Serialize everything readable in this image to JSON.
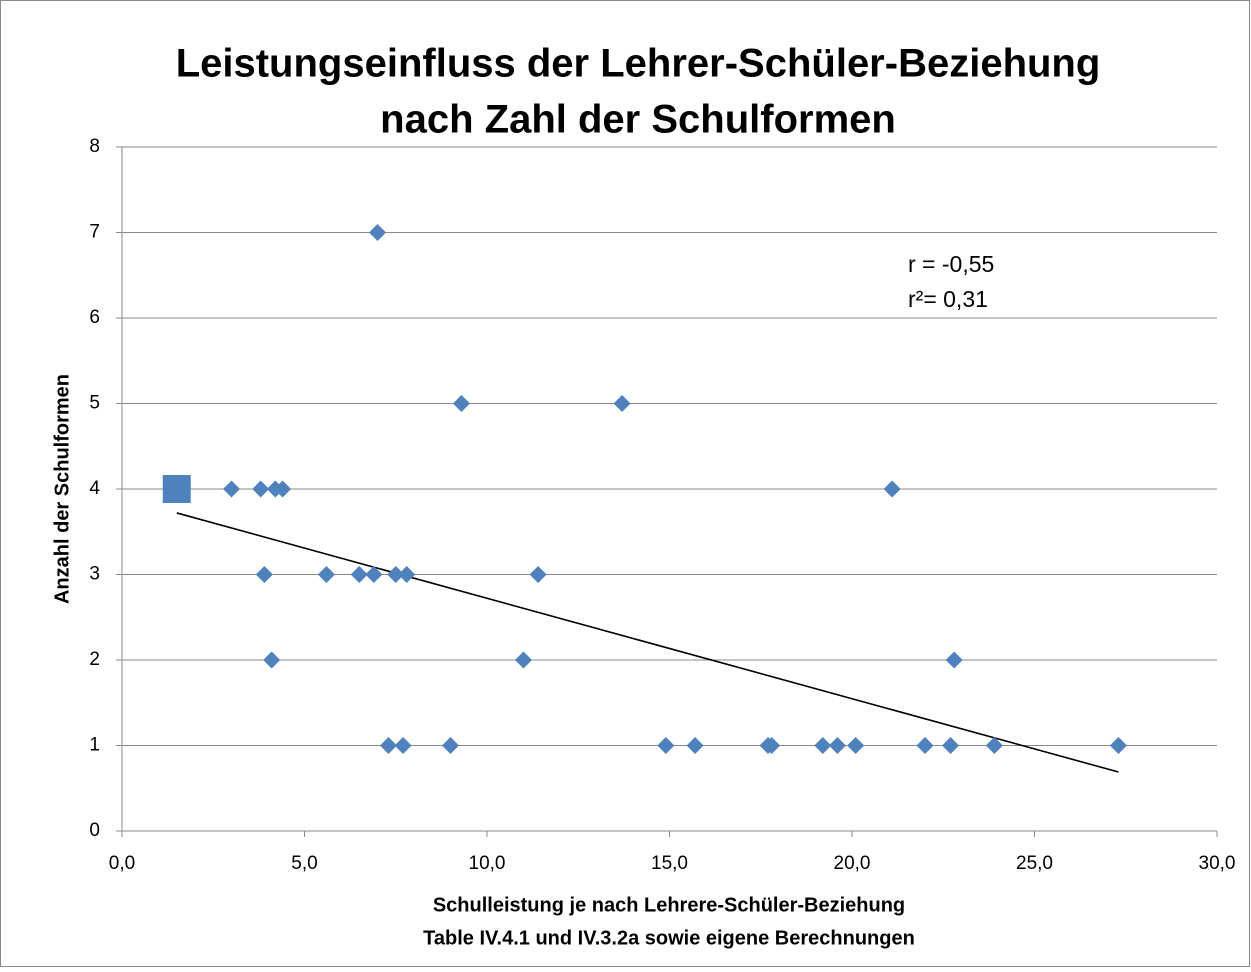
{
  "chart_data": {
    "type": "scatter",
    "title": [
      "Leistungseinfluss der Lehrer-Schüler-Beziehung",
      "nach Zahl der Schulformen"
    ],
    "xlabel": "Schulleistung je nach Lehrere-Schüler-Beziehung",
    "source": "Table IV.4.1 und IV.3.2a sowie eigene Berechnungen",
    "ylabel": "Anzahl der Schulformen",
    "annotations": [
      "r = -0,55",
      "r²=  0,31"
    ],
    "xlim": [
      0,
      30
    ],
    "xticks": [
      {
        "value": 0,
        "label": "0,0"
      },
      {
        "value": 5,
        "label": "5,0"
      },
      {
        "value": 10,
        "label": "10,0"
      },
      {
        "value": 15,
        "label": "15,0"
      },
      {
        "value": 20,
        "label": "20,0"
      },
      {
        "value": 25,
        "label": "25,0"
      },
      {
        "value": 30,
        "label": "30,0"
      }
    ],
    "ylim": [
      0,
      8
    ],
    "yticks": [
      0,
      1,
      2,
      3,
      4,
      5,
      6,
      7,
      8
    ],
    "grid": true,
    "series": [
      {
        "color": "#4f81bd",
        "marker": "diamond",
        "x": [
          3.0,
          3.8,
          4.2,
          4.4,
          21.1,
          7.0,
          9.3,
          13.7,
          3.9,
          5.6,
          6.5,
          6.9,
          7.5,
          7.8,
          11.4,
          4.1,
          11.0,
          22.8,
          7.3,
          7.7,
          9.0,
          14.9,
          15.7,
          17.7,
          17.8,
          19.2,
          19.6,
          20.1,
          22.0,
          22.7,
          23.9,
          27.3
        ],
        "values": [
          4,
          4,
          4,
          4,
          4,
          7,
          5,
          5,
          3,
          3,
          3,
          3,
          3,
          3,
          3,
          2,
          2,
          2,
          1,
          1,
          1,
          1,
          1,
          1,
          1,
          1,
          1,
          1,
          1,
          1,
          1,
          1
        ]
      },
      {
        "color": "#4f81bd",
        "marker": "square",
        "x": [
          1.5
        ],
        "values": [
          4
        ]
      }
    ],
    "trendline": {
      "color": "#000000",
      "x": [
        1.5,
        27.3
      ],
      "values": [
        3.72,
        0.69
      ]
    }
  }
}
